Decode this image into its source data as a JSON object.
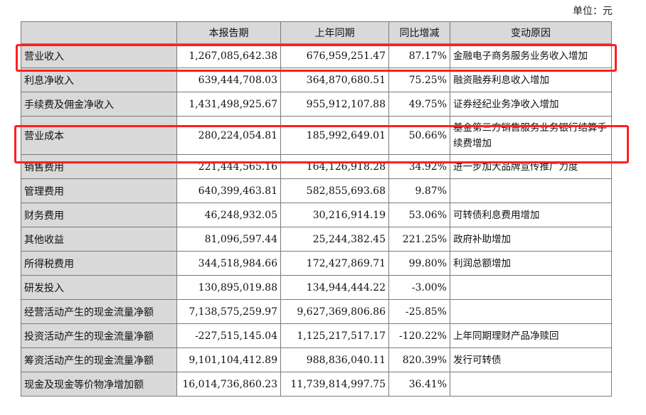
{
  "unit_label": "单位：元",
  "headers": [
    "",
    "本报告期",
    "上年同期",
    "同比增减",
    "变动原因"
  ],
  "rows": [
    {
      "item": "营业收入",
      "current": "1,267,085,642.38",
      "prior": "676,959,251.47",
      "change": "87.17%",
      "reason": "金融电子商务服务业务收入增加"
    },
    {
      "item": "利息净收入",
      "current": "639,444,708.03",
      "prior": "364,870,680.51",
      "change": "75.25%",
      "reason": "融资融券利息收入增加"
    },
    {
      "item": "手续费及佣金净收入",
      "current": "1,431,498,925.67",
      "prior": "955,912,107.88",
      "change": "49.75%",
      "reason": "证券经纪业务净收入增加"
    },
    {
      "item": "营业成本",
      "current": "280,224,054.81",
      "prior": "185,992,649.01",
      "change": "50.66%",
      "reason": "基金第三方销售服务业务银行结算手续费增加"
    },
    {
      "item": "销售费用",
      "current": "221,444,565.16",
      "prior": "164,126,918.28",
      "change": "34.92%",
      "reason": "进一步加大品牌宣传推广力度"
    },
    {
      "item": "管理费用",
      "current": "640,399,463.81",
      "prior": "582,855,693.68",
      "change": "9.87%",
      "reason": ""
    },
    {
      "item": "财务费用",
      "current": "46,248,932.05",
      "prior": "30,216,914.19",
      "change": "53.06%",
      "reason": "可转债利息费用增加"
    },
    {
      "item": "其他收益",
      "current": "81,096,597.44",
      "prior": "25,244,382.45",
      "change": "221.25%",
      "reason": "政府补助增加"
    },
    {
      "item": "所得税费用",
      "current": "344,518,984.66",
      "prior": "172,427,869.71",
      "change": "99.80%",
      "reason": "利润总额增加"
    },
    {
      "item": "研发投入",
      "current": "130,895,019.88",
      "prior": "134,944,444.22",
      "change": "-3.00%",
      "reason": ""
    },
    {
      "item": "经营活动产生的现金流量净额",
      "current": "7,138,575,259.97",
      "prior": "9,627,369,806.86",
      "change": "-25.85%",
      "reason": ""
    },
    {
      "item": "投资活动产生的现金流量净额",
      "current": "-227,515,145.04",
      "prior": "1,125,217,517.17",
      "change": "-120.22%",
      "reason": "上年同期理财产品净赎回"
    },
    {
      "item": "筹资活动产生的现金流量净额",
      "current": "9,101,104,412.89",
      "prior": "988,836,040.11",
      "change": "820.39%",
      "reason": "发行可转债"
    },
    {
      "item": "现金及现金等价物净增加额",
      "current": "16,014,736,860.23",
      "prior": "11,739,814,997.75",
      "change": "36.41%",
      "reason": ""
    }
  ],
  "highlight_color": "#ff1f1f"
}
